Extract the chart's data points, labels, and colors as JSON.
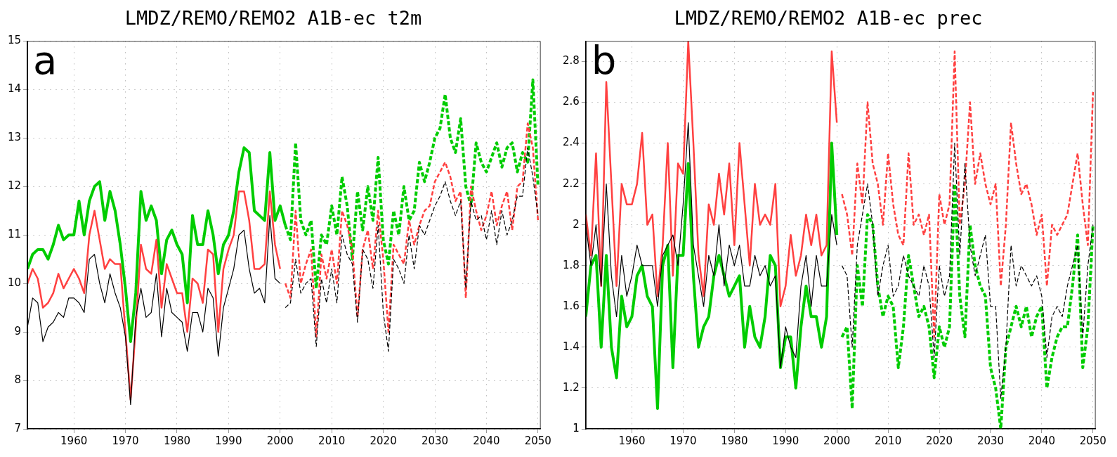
{
  "chart_data": [
    {
      "type": "line",
      "title": "LMDZ/REMO/REMO2 A1B-ec t2m",
      "annotations": [
        "a"
      ],
      "xlim": [
        1951,
        2050.5
      ],
      "xticks": [
        1960,
        1970,
        1980,
        1990,
        2000,
        2010,
        2020,
        2030,
        2040,
        2050
      ],
      "ylim": [
        7,
        15
      ],
      "yticks": [
        7,
        8,
        9,
        10,
        11,
        12,
        13,
        14,
        15
      ],
      "grid": true,
      "series": [
        {
          "color": "#000000",
          "line_style": "solid",
          "x": [
            1951,
            1952,
            1953,
            1954,
            1955,
            1956,
            1957,
            1958,
            1959,
            1960,
            1961,
            1962,
            1963,
            1964,
            1965,
            1966,
            1967,
            1968,
            1969,
            1970,
            1971,
            1972,
            1973,
            1974,
            1975,
            1976,
            1977,
            1978,
            1979,
            1980,
            1981,
            1982,
            1983,
            1984,
            1985,
            1986,
            1987,
            1988,
            1989,
            1990,
            1991,
            1992,
            1993,
            1994,
            1995,
            1996,
            1997,
            1998,
            1999,
            2000
          ],
          "values": [
            9.1,
            9.7,
            9.6,
            8.8,
            9.1,
            9.2,
            9.4,
            9.3,
            9.7,
            9.7,
            9.6,
            9.4,
            10.5,
            10.6,
            10.0,
            9.6,
            10.2,
            9.8,
            9.5,
            8.9,
            7.5,
            9.3,
            9.9,
            9.3,
            9.4,
            10.2,
            8.9,
            9.9,
            9.4,
            9.3,
            9.2,
            8.6,
            9.4,
            9.4,
            9.0,
            9.9,
            9.7,
            8.5,
            9.5,
            9.9,
            10.3,
            11.0,
            11.1,
            10.3,
            9.8,
            9.9,
            9.6,
            11.4,
            10.1,
            10.0
          ]
        },
        {
          "color": "#ff4040",
          "line_style": "solid",
          "x": [
            1951,
            1952,
            1953,
            1954,
            1955,
            1956,
            1957,
            1958,
            1959,
            1960,
            1961,
            1962,
            1963,
            1964,
            1965,
            1966,
            1967,
            1968,
            1969,
            1970,
            1971,
            1972,
            1973,
            1974,
            1975,
            1976,
            1977,
            1978,
            1979,
            1980,
            1981,
            1982,
            1983,
            1984,
            1985,
            1986,
            1987,
            1988,
            1989,
            1990,
            1991,
            1992,
            1993,
            1994,
            1995,
            1996,
            1997,
            1998,
            1999,
            2000
          ],
          "values": [
            10.0,
            10.3,
            10.1,
            9.5,
            9.6,
            9.8,
            10.2,
            9.9,
            10.1,
            10.3,
            10.1,
            9.8,
            11.0,
            11.5,
            10.9,
            10.3,
            10.5,
            10.4,
            10.4,
            9.0,
            7.6,
            9.1,
            10.8,
            10.3,
            10.2,
            10.9,
            9.5,
            10.4,
            10.1,
            9.8,
            9.8,
            9.0,
            10.1,
            10.0,
            9.6,
            10.7,
            10.6,
            9.0,
            10.3,
            10.7,
            11.0,
            11.9,
            11.9,
            11.3,
            10.3,
            10.3,
            10.4,
            11.9,
            10.8,
            10.3
          ]
        },
        {
          "color": "#00cc00",
          "line_style": "solid",
          "x": [
            1951,
            1952,
            1953,
            1954,
            1955,
            1956,
            1957,
            1958,
            1959,
            1960,
            1961,
            1962,
            1963,
            1964,
            1965,
            1966,
            1967,
            1968,
            1969,
            1970,
            1971,
            1972,
            1973,
            1974,
            1975,
            1976,
            1977,
            1978,
            1979,
            1980,
            1981,
            1982,
            1983,
            1984,
            1985,
            1986,
            1987,
            1988,
            1989,
            1990,
            1991,
            1992,
            1993,
            1994,
            1995,
            1996,
            1997,
            1998,
            1999,
            2000,
            2001
          ],
          "values": [
            10.3,
            10.6,
            10.7,
            10.7,
            10.5,
            10.8,
            11.2,
            10.9,
            11.0,
            11.0,
            11.7,
            11.0,
            11.7,
            12.0,
            12.1,
            11.3,
            11.9,
            11.5,
            10.8,
            9.9,
            8.8,
            9.8,
            11.9,
            11.3,
            11.6,
            11.3,
            10.2,
            10.9,
            11.1,
            10.8,
            10.6,
            9.6,
            11.4,
            10.8,
            10.8,
            11.5,
            11.0,
            10.2,
            10.8,
            11.0,
            11.5,
            12.3,
            12.8,
            12.7,
            11.5,
            11.4,
            11.3,
            12.7,
            11.3,
            11.6,
            11.2
          ]
        },
        {
          "color": "#000000",
          "line_style": "dashed",
          "x": [
            2001,
            2002,
            2003,
            2004,
            2005,
            2006,
            2007,
            2008,
            2009,
            2010,
            2011,
            2012,
            2013,
            2014,
            2015,
            2016,
            2017,
            2018,
            2019,
            2020,
            2021,
            2022,
            2023,
            2024,
            2025,
            2026,
            2027,
            2028,
            2029,
            2030,
            2031,
            2032,
            2033,
            2034,
            2035,
            2036,
            2037,
            2038,
            2039,
            2040,
            2041,
            2042,
            2043,
            2044,
            2045,
            2046,
            2047,
            2048,
            2049,
            2050
          ],
          "values": [
            9.5,
            9.6,
            10.5,
            9.8,
            10.0,
            10.1,
            8.7,
            10.1,
            9.6,
            10.3,
            9.6,
            11.0,
            10.6,
            10.4,
            9.2,
            10.7,
            10.5,
            9.9,
            11.2,
            9.4,
            8.6,
            10.5,
            10.3,
            10.0,
            11.0,
            10.3,
            11.2,
            11.0,
            11.3,
            11.6,
            11.8,
            12.1,
            11.7,
            11.4,
            11.7,
            9.9,
            11.7,
            11.3,
            11.4,
            10.9,
            11.5,
            10.8,
            11.5,
            11.0,
            11.3,
            11.8,
            11.8,
            12.8,
            12.2,
            11.4
          ]
        },
        {
          "color": "#ff4040",
          "line_style": "dashed",
          "x": [
            2001,
            2002,
            2003,
            2004,
            2005,
            2006,
            2007,
            2008,
            2009,
            2010,
            2011,
            2012,
            2013,
            2014,
            2015,
            2016,
            2017,
            2018,
            2019,
            2020,
            2021,
            2022,
            2023,
            2024,
            2025,
            2026,
            2027,
            2028,
            2029,
            2030,
            2031,
            2032,
            2033,
            2034,
            2035,
            2036,
            2037,
            2038,
            2039,
            2040,
            2041,
            2042,
            2043,
            2044,
            2045,
            2046,
            2047,
            2048,
            2049,
            2050
          ],
          "values": [
            10.0,
            9.7,
            11.5,
            10.0,
            10.4,
            10.7,
            8.9,
            10.6,
            10.1,
            10.7,
            10.0,
            11.5,
            11.2,
            10.7,
            9.3,
            10.7,
            11.1,
            10.3,
            11.5,
            10.5,
            9.0,
            10.8,
            10.6,
            10.4,
            11.3,
            10.8,
            11.2,
            11.5,
            11.6,
            12.1,
            12.3,
            12.5,
            12.2,
            11.7,
            11.9,
            9.7,
            12.0,
            11.5,
            11.1,
            11.4,
            11.9,
            11.2,
            11.6,
            11.9,
            11.1,
            12.0,
            12.1,
            13.3,
            12.8,
            11.3
          ]
        },
        {
          "color": "#00cc00",
          "line_style": "dashed",
          "x": [
            2001,
            2002,
            2003,
            2004,
            2005,
            2006,
            2007,
            2008,
            2009,
            2010,
            2011,
            2012,
            2013,
            2014,
            2015,
            2016,
            2017,
            2018,
            2019,
            2020,
            2021,
            2022,
            2023,
            2024,
            2025,
            2026,
            2027,
            2028,
            2029,
            2030,
            2031,
            2032,
            2033,
            2034,
            2035,
            2036,
            2037,
            2038,
            2039,
            2040,
            2041,
            2042,
            2043,
            2044,
            2045,
            2046,
            2047,
            2048,
            2049,
            2050
          ],
          "values": [
            11.2,
            10.9,
            12.9,
            11.3,
            11.0,
            11.3,
            9.9,
            11.0,
            10.8,
            11.6,
            11.0,
            12.2,
            11.6,
            10.5,
            11.9,
            11.1,
            12.0,
            11.3,
            12.6,
            10.9,
            10.4,
            11.5,
            11.0,
            12.0,
            11.3,
            11.5,
            12.5,
            12.1,
            12.5,
            13.0,
            13.2,
            13.9,
            13.0,
            12.7,
            13.4,
            12.0,
            11.6,
            12.9,
            12.5,
            12.3,
            12.6,
            12.9,
            12.4,
            12.8,
            12.9,
            12.3,
            12.7,
            12.5,
            14.2,
            12.0
          ]
        }
      ]
    },
    {
      "type": "line",
      "title": "LMDZ/REMO/REMO2 A1B-ec prec",
      "annotations": [
        "b"
      ],
      "xlim": [
        1951,
        2050.5
      ],
      "xticks": [
        1960,
        1970,
        1980,
        1990,
        2000,
        2010,
        2020,
        2030,
        2040,
        2050
      ],
      "ylim": [
        1,
        2.9
      ],
      "yticks": [
        1,
        1.2,
        1.4,
        1.6,
        1.8,
        2,
        2.2,
        2.4,
        2.6,
        2.8
      ],
      "grid": true,
      "series": [
        {
          "color": "#000000",
          "line_style": "solid",
          "x": [
            1951,
            1952,
            1953,
            1954,
            1955,
            1956,
            1957,
            1958,
            1959,
            1960,
            1961,
            1962,
            1963,
            1964,
            1965,
            1966,
            1967,
            1968,
            1969,
            1970,
            1971,
            1972,
            1973,
            1974,
            1975,
            1976,
            1977,
            1978,
            1979,
            1980,
            1981,
            1982,
            1983,
            1984,
            1985,
            1986,
            1987,
            1988,
            1989,
            1990,
            1991,
            1992,
            1993,
            1994,
            1995,
            1996,
            1997,
            1998,
            1999,
            2000
          ],
          "values": [
            2.0,
            1.8,
            2.0,
            1.7,
            2.2,
            1.75,
            1.55,
            1.85,
            1.65,
            1.75,
            1.9,
            1.8,
            1.8,
            1.8,
            1.6,
            1.85,
            1.9,
            1.95,
            1.8,
            2.1,
            2.5,
            1.9,
            1.75,
            1.6,
            1.85,
            1.75,
            2.0,
            1.7,
            1.9,
            1.8,
            1.9,
            1.7,
            1.7,
            1.85,
            1.75,
            1.8,
            1.7,
            1.75,
            1.3,
            1.5,
            1.4,
            1.35,
            1.7,
            1.85,
            1.6,
            1.85,
            1.7,
            1.7,
            2.05,
            1.9
          ]
        },
        {
          "color": "#ff4040",
          "line_style": "solid",
          "x": [
            1951,
            1952,
            1953,
            1954,
            1955,
            1956,
            1957,
            1958,
            1959,
            1960,
            1961,
            1962,
            1963,
            1964,
            1965,
            1966,
            1967,
            1968,
            1969,
            1970,
            1971,
            1972,
            1973,
            1974,
            1975,
            1976,
            1977,
            1978,
            1979,
            1980,
            1981,
            1982,
            1983,
            1984,
            1985,
            1986,
            1987,
            1988,
            1989,
            1990,
            1991,
            1992,
            1993,
            1994,
            1995,
            1996,
            1997,
            1998,
            1999,
            2000
          ],
          "values": [
            2.05,
            1.85,
            2.35,
            1.7,
            2.7,
            2.2,
            1.7,
            2.2,
            2.1,
            2.1,
            2.2,
            2.45,
            2.0,
            2.05,
            1.65,
            1.9,
            2.4,
            1.75,
            2.3,
            2.25,
            2.9,
            2.4,
            1.85,
            1.65,
            2.1,
            2.0,
            2.25,
            2.05,
            2.3,
            1.9,
            2.4,
            2.1,
            1.8,
            2.2,
            2.0,
            2.05,
            2.0,
            2.2,
            1.6,
            1.7,
            1.95,
            1.75,
            1.85,
            2.05,
            1.9,
            2.05,
            1.85,
            1.9,
            2.85,
            2.5
          ]
        },
        {
          "color": "#00cc00",
          "line_style": "solid",
          "x": [
            1951,
            1952,
            1953,
            1954,
            1955,
            1956,
            1957,
            1958,
            1959,
            1960,
            1961,
            1962,
            1963,
            1964,
            1965,
            1966,
            1967,
            1968,
            1969,
            1970,
            1971,
            1972,
            1973,
            1974,
            1975,
            1976,
            1977,
            1978,
            1979,
            1980,
            1981,
            1982,
            1983,
            1984,
            1985,
            1986,
            1987,
            1988,
            1989,
            1990,
            1991,
            1992,
            1993,
            1994,
            1995,
            1996,
            1997,
            1998,
            1999,
            2000
          ],
          "values": [
            1.55,
            1.8,
            1.85,
            1.4,
            1.85,
            1.4,
            1.25,
            1.65,
            1.5,
            1.55,
            1.75,
            1.8,
            1.65,
            1.6,
            1.1,
            1.8,
            1.9,
            1.3,
            1.85,
            1.85,
            2.3,
            1.75,
            1.4,
            1.5,
            1.55,
            1.75,
            1.85,
            1.75,
            1.65,
            1.7,
            1.75,
            1.4,
            1.6,
            1.45,
            1.4,
            1.55,
            1.85,
            1.8,
            1.3,
            1.45,
            1.45,
            1.2,
            1.5,
            1.7,
            1.55,
            1.55,
            1.4,
            1.55,
            2.4,
            1.95
          ]
        },
        {
          "color": "#000000",
          "line_style": "dashed",
          "x": [
            2001,
            2002,
            2003,
            2004,
            2005,
            2006,
            2007,
            2008,
            2009,
            2010,
            2011,
            2012,
            2013,
            2014,
            2015,
            2016,
            2017,
            2018,
            2019,
            2020,
            2021,
            2022,
            2023,
            2024,
            2025,
            2026,
            2027,
            2028,
            2029,
            2030,
            2031,
            2032,
            2033,
            2034,
            2035,
            2036,
            2037,
            2038,
            2039,
            2040,
            2041,
            2042,
            2043,
            2044,
            2045,
            2046,
            2047,
            2048,
            2049,
            2050
          ],
          "values": [
            1.8,
            1.75,
            1.4,
            1.9,
            2.05,
            2.2,
            2.0,
            1.65,
            1.8,
            1.9,
            1.65,
            1.7,
            1.85,
            1.75,
            1.7,
            1.65,
            1.8,
            1.7,
            1.35,
            1.8,
            1.65,
            1.75,
            2.4,
            1.85,
            2.3,
            1.9,
            1.75,
            1.85,
            1.95,
            1.6,
            1.6,
            1.15,
            1.4,
            1.9,
            1.7,
            1.8,
            1.75,
            1.7,
            1.75,
            1.65,
            1.35,
            1.55,
            1.6,
            1.55,
            1.7,
            1.8,
            1.9,
            1.45,
            1.8,
            2.0
          ]
        },
        {
          "color": "#ff4040",
          "line_style": "dashed",
          "x": [
            2001,
            2002,
            2003,
            2004,
            2005,
            2006,
            2007,
            2008,
            2009,
            2010,
            2011,
            2012,
            2013,
            2014,
            2015,
            2016,
            2017,
            2018,
            2019,
            2020,
            2021,
            2022,
            2023,
            2024,
            2025,
            2026,
            2027,
            2028,
            2029,
            2030,
            2031,
            2032,
            2033,
            2034,
            2035,
            2036,
            2037,
            2038,
            2039,
            2040,
            2041,
            2042,
            2043,
            2044,
            2045,
            2046,
            2047,
            2048,
            2049,
            2050
          ],
          "values": [
            2.15,
            2.05,
            1.85,
            2.3,
            2.1,
            2.6,
            2.3,
            2.2,
            2.0,
            2.35,
            2.1,
            1.95,
            1.9,
            2.35,
            2.0,
            2.05,
            1.95,
            2.05,
            1.45,
            2.15,
            2.0,
            2.1,
            2.85,
            2.0,
            2.2,
            2.6,
            2.2,
            2.35,
            2.2,
            2.1,
            2.2,
            1.7,
            2.0,
            2.5,
            2.3,
            2.15,
            2.2,
            2.1,
            1.95,
            2.05,
            1.7,
            2.0,
            1.95,
            2.0,
            2.05,
            2.2,
            2.35,
            2.1,
            1.9,
            2.65
          ]
        },
        {
          "color": "#00cc00",
          "line_style": "dashed",
          "x": [
            2001,
            2002,
            2003,
            2004,
            2005,
            2006,
            2007,
            2008,
            2009,
            2010,
            2011,
            2012,
            2013,
            2014,
            2015,
            2016,
            2017,
            2018,
            2019,
            2020,
            2021,
            2022,
            2023,
            2024,
            2025,
            2026,
            2027,
            2028,
            2029,
            2030,
            2031,
            2032,
            2033,
            2034,
            2035,
            2036,
            2037,
            2038,
            2039,
            2040,
            2041,
            2042,
            2043,
            2044,
            2045,
            2046,
            2047,
            2048,
            2049,
            2050
          ],
          "values": [
            1.45,
            1.5,
            1.1,
            1.8,
            1.6,
            2.05,
            2.0,
            1.7,
            1.55,
            1.65,
            1.6,
            1.3,
            1.5,
            1.85,
            1.7,
            1.55,
            1.6,
            1.5,
            1.25,
            1.5,
            1.4,
            1.5,
            2.2,
            1.65,
            1.45,
            2.0,
            1.8,
            1.7,
            1.65,
            1.3,
            1.2,
            1.0,
            1.4,
            1.5,
            1.6,
            1.5,
            1.6,
            1.45,
            1.55,
            1.6,
            1.2,
            1.35,
            1.45,
            1.5,
            1.5,
            1.7,
            1.95,
            1.3,
            1.5,
            2.0
          ]
        }
      ]
    }
  ]
}
